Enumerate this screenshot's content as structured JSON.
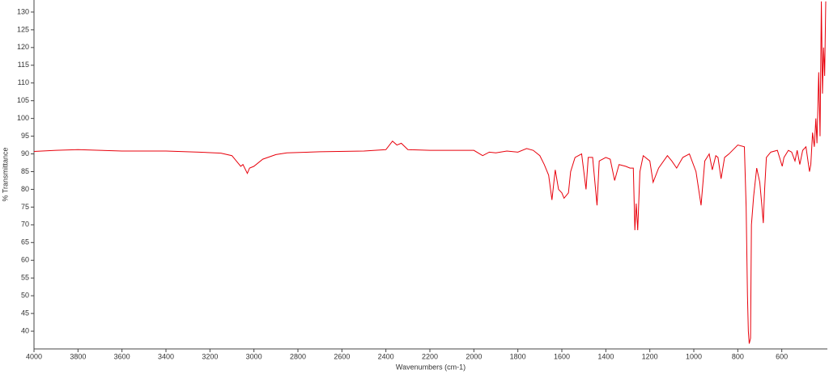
{
  "chart_data": {
    "type": "line",
    "xlabel": "Wavenumbers (cm-1)",
    "ylabel": "% Transmittance",
    "color": "#e8000b",
    "xlim": [
      4000,
      400
    ],
    "xticks": [
      4000,
      3800,
      3600,
      3400,
      3200,
      3000,
      2800,
      2600,
      2400,
      2200,
      2000,
      1800,
      1600,
      1400,
      1200,
      1000,
      800,
      600
    ],
    "ylim": [
      35,
      133.4
    ],
    "yticks": [
      40,
      45,
      50,
      55,
      60,
      65,
      70,
      75,
      80,
      85,
      90,
      95,
      100,
      105,
      110,
      115,
      120,
      125,
      130
    ],
    "grid": false,
    "x": [
      4000,
      3900,
      3800,
      3700,
      3600,
      3400,
      3250,
      3150,
      3100,
      3080,
      3060,
      3050,
      3030,
      3020,
      3000,
      2960,
      2900,
      2850,
      2700,
      2500,
      2400,
      2370,
      2350,
      2330,
      2300,
      2200,
      2000,
      1960,
      1930,
      1900,
      1850,
      1800,
      1760,
      1730,
      1700,
      1680,
      1660,
      1645,
      1630,
      1615,
      1600,
      1590,
      1570,
      1560,
      1540,
      1510,
      1490,
      1480,
      1460,
      1440,
      1430,
      1400,
      1380,
      1360,
      1340,
      1310,
      1290,
      1275,
      1268,
      1262,
      1255,
      1245,
      1230,
      1200,
      1185,
      1160,
      1120,
      1100,
      1078,
      1050,
      1020,
      990,
      967,
      950,
      930,
      916,
      900,
      890,
      876,
      860,
      840,
      800,
      770,
      762,
      756,
      752,
      748,
      742,
      738,
      728,
      714,
      700,
      690,
      684,
      678,
      670,
      650,
      620,
      598,
      590,
      570,
      555,
      540,
      530,
      518,
      505,
      490,
      474,
      468,
      460,
      452,
      445,
      440,
      432,
      426,
      420,
      415,
      410,
      405,
      400
    ],
    "values": [
      90.7,
      91,
      91.2,
      91,
      90.8,
      90.8,
      90.5,
      90.2,
      89.5,
      88,
      86.5,
      87,
      84.5,
      86,
      86.5,
      88.5,
      89.8,
      90.3,
      90.6,
      90.8,
      91.2,
      93.6,
      92.5,
      93,
      91.2,
      91,
      91,
      89.5,
      90.5,
      90.3,
      90.8,
      90.5,
      91.5,
      91,
      89.5,
      87,
      84,
      77,
      85.5,
      80,
      79,
      77.5,
      79,
      85,
      89,
      90,
      80,
      89,
      89,
      75.5,
      88,
      89,
      88.5,
      82.5,
      87,
      86.5,
      86,
      86,
      68.5,
      76,
      68.5,
      85,
      89.5,
      88,
      82,
      86,
      89.5,
      88,
      86,
      89,
      90,
      85,
      75.5,
      88,
      90,
      85.5,
      89.5,
      89,
      83,
      89,
      90,
      92.5,
      92,
      75,
      50,
      40,
      36.5,
      38,
      70,
      78,
      86,
      82,
      75,
      70.5,
      80,
      89,
      90.5,
      91,
      86.5,
      89,
      91,
      90.5,
      88,
      91,
      87,
      91,
      92,
      85,
      87,
      96,
      92,
      100,
      93,
      113,
      95,
      133,
      107,
      120,
      112,
      133
    ]
  }
}
